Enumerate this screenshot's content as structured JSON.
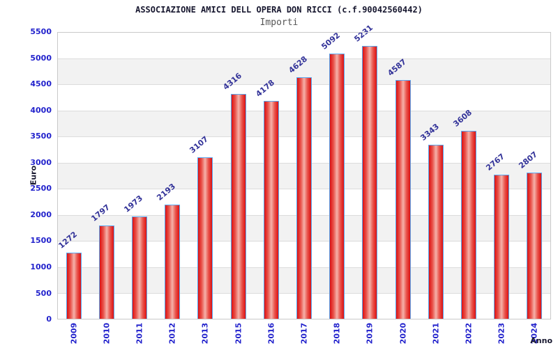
{
  "chart_data": {
    "type": "bar",
    "title": "ASSOCIAZIONE AMICI DELL OPERA DON RICCI (c.f.90042560442)",
    "subtitle": "Importi",
    "xlabel": "Anno",
    "ylabel": "Euro",
    "categories": [
      "2009",
      "2010",
      "2011",
      "2012",
      "2013",
      "2015",
      "2016",
      "2017",
      "2018",
      "2019",
      "2020",
      "2021",
      "2022",
      "2023",
      "2024"
    ],
    "values": [
      1272,
      1797,
      1973,
      2193,
      3107,
      4316,
      4178,
      4628,
      5092,
      5231,
      4587,
      3343,
      3608,
      2767,
      2807
    ],
    "ylim": [
      0,
      5500
    ],
    "ytick_step": 500,
    "yticks": [
      "0",
      "500",
      "1000",
      "1500",
      "2000",
      "2500",
      "3000",
      "3500",
      "4000",
      "4500",
      "5000",
      "5500"
    ],
    "grid": true,
    "legend": "none",
    "colors": {
      "bar_edge": "#dd1111",
      "bar_center": "#f5b2aa",
      "bar_border": "#58a7f0",
      "tick_label": "#2222cc",
      "value_label": "#333399",
      "axis_title": "#17172f",
      "subtitle": "#555555",
      "grid_band": "#f2f2f2",
      "gridline": "#dcdcdc",
      "plot_border": "#c9c9c9",
      "background": "#ffffff"
    }
  }
}
